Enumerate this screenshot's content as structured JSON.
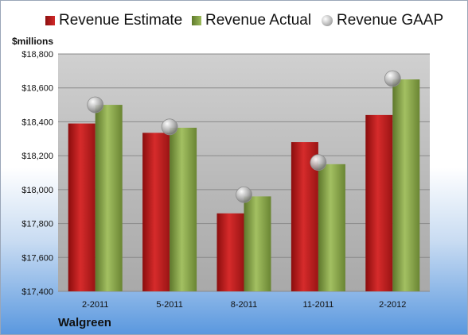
{
  "chart_data": {
    "type": "bar",
    "categories": [
      "2-2011",
      "5-2011",
      "8-2011",
      "11-2011",
      "2-2012"
    ],
    "series": [
      {
        "name": "Revenue Estimate",
        "kind": "bar",
        "color": "#c0181b",
        "values": [
          18390,
          18335,
          17860,
          18280,
          18440
        ]
      },
      {
        "name": "Revenue Actual",
        "kind": "bar",
        "color": "#8daa4b",
        "values": [
          18500,
          18365,
          17960,
          18150,
          18650
        ]
      },
      {
        "name": "Revenue GAAP",
        "kind": "marker",
        "color": "#b0b0b0",
        "values": [
          18500,
          18370,
          17970,
          18160,
          18655
        ]
      }
    ],
    "ylabel": "$millions",
    "ylim": [
      17400,
      18800
    ],
    "yticks": [
      "$17,400",
      "$17,600",
      "$17,800",
      "$18,000",
      "$18,200",
      "$18,400",
      "$18,600",
      "$18,800"
    ],
    "ytick_values": [
      17400,
      17600,
      17800,
      18000,
      18200,
      18400,
      18600,
      18800
    ],
    "grid": true,
    "legend": "top"
  },
  "company": "Walgreen"
}
